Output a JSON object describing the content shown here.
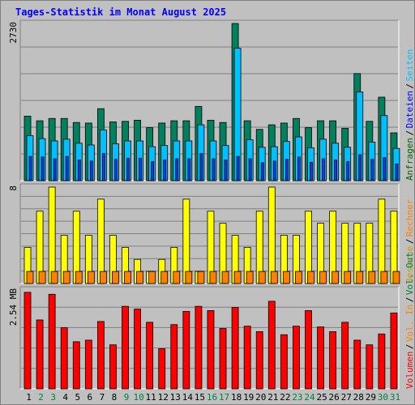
{
  "chart_data": {
    "type": "bar",
    "title": "Tages-Statistik im Monat August 2025",
    "categories": [
      "1",
      "2",
      "3",
      "4",
      "5",
      "6",
      "7",
      "8",
      "9",
      "10",
      "11",
      "12",
      "13",
      "14",
      "15",
      "16",
      "17",
      "18",
      "19",
      "20",
      "21",
      "22",
      "23",
      "24",
      "25",
      "26",
      "27",
      "28",
      "29",
      "30",
      "31"
    ],
    "weekend_days": [
      "2",
      "3",
      "9",
      "10",
      "16",
      "17",
      "23",
      "24",
      "30",
      "31"
    ],
    "panels": [
      {
        "id": "hits",
        "ymax_label": "2730",
        "ymax": 2730,
        "right_labels": [
          {
            "text": "Anfragen",
            "color": "#006600"
          },
          {
            "text": "Dateien",
            "color": "#0000ff"
          },
          {
            "text": "Seiten",
            "color": "#00c0ff"
          }
        ],
        "series": [
          {
            "name": "Anfragen",
            "color": "#00805c",
            "values": [
              1120,
              1040,
              1080,
              1080,
              1010,
              1000,
              1250,
              1020,
              1030,
              1050,
              920,
              1000,
              1040,
              1040,
              1290,
              1050,
              1010,
              2730,
              1040,
              890,
              970,
              1000,
              1080,
              920,
              1040,
              1040,
              910,
              1860,
              1030,
              1450,
              830
            ]
          },
          {
            "name": "Dateien",
            "color": "#00c0ff",
            "values": [
              780,
              730,
              690,
              720,
              650,
              620,
              880,
              640,
              690,
              690,
              590,
              610,
              690,
              690,
              970,
              690,
              610,
              2300,
              710,
              580,
              590,
              680,
              760,
              570,
              720,
              650,
              580,
              1540,
              670,
              1130,
              560
            ]
          },
          {
            "name": "Seiten",
            "color": "#0040ff",
            "values": [
              420,
              410,
              380,
              420,
              360,
              340,
              470,
              370,
              390,
              390,
              330,
              360,
              380,
              380,
              470,
              380,
              360,
              420,
              380,
              310,
              340,
              370,
              410,
              320,
              380,
              360,
              330,
              450,
              370,
              400,
              290
            ]
          }
        ]
      },
      {
        "id": "visits",
        "ymax_label": "8",
        "ymax": 8,
        "right_labels": [
          {
            "text": "Besuche",
            "color": "#c0a000"
          },
          {
            "text": "Rechner",
            "color": "#ff8000"
          }
        ],
        "series": [
          {
            "name": "Besuche",
            "color": "#ffff00",
            "values": [
              3,
              6,
              8,
              4,
              6,
              4,
              7,
              4,
              3,
              2,
              1,
              2,
              3,
              7,
              1,
              6,
              5,
              4,
              3,
              6,
              8,
              4,
              4,
              6,
              5,
              6,
              5,
              5,
              5,
              7,
              6
            ]
          },
          {
            "name": "Rechner",
            "color": "#ff8000",
            "values": [
              1,
              1,
              1,
              1,
              1,
              1,
              1,
              1,
              1,
              1,
              1,
              1,
              1,
              1,
              1,
              1,
              1,
              1,
              1,
              1,
              1,
              1,
              1,
              1,
              1,
              1,
              1,
              1,
              1,
              1,
              1
            ]
          }
        ]
      },
      {
        "id": "volume",
        "ymax_label": "2.54 MB",
        "ymax": 2.54,
        "right_labels": [
          {
            "text": "Volumen",
            "color": "#ff0000"
          },
          {
            "text": "Vol. In",
            "color": "#ff8000"
          },
          {
            "text": "Vol. Out",
            "color": "#008040"
          }
        ],
        "series": [
          {
            "name": "Volumen",
            "color": "#ff0000",
            "values": [
              2.48,
              1.77,
              2.43,
              1.57,
              1.21,
              1.25,
              1.73,
              1.13,
              2.12,
              2.05,
              1.71,
              1.03,
              1.65,
              1.99,
              2.12,
              2.01,
              1.55,
              2.09,
              1.61,
              1.47,
              2.25,
              1.39,
              1.61,
              2.01,
              1.59,
              1.47,
              1.71,
              1.25,
              1.13,
              1.41,
              1.95
            ]
          }
        ]
      }
    ]
  }
}
